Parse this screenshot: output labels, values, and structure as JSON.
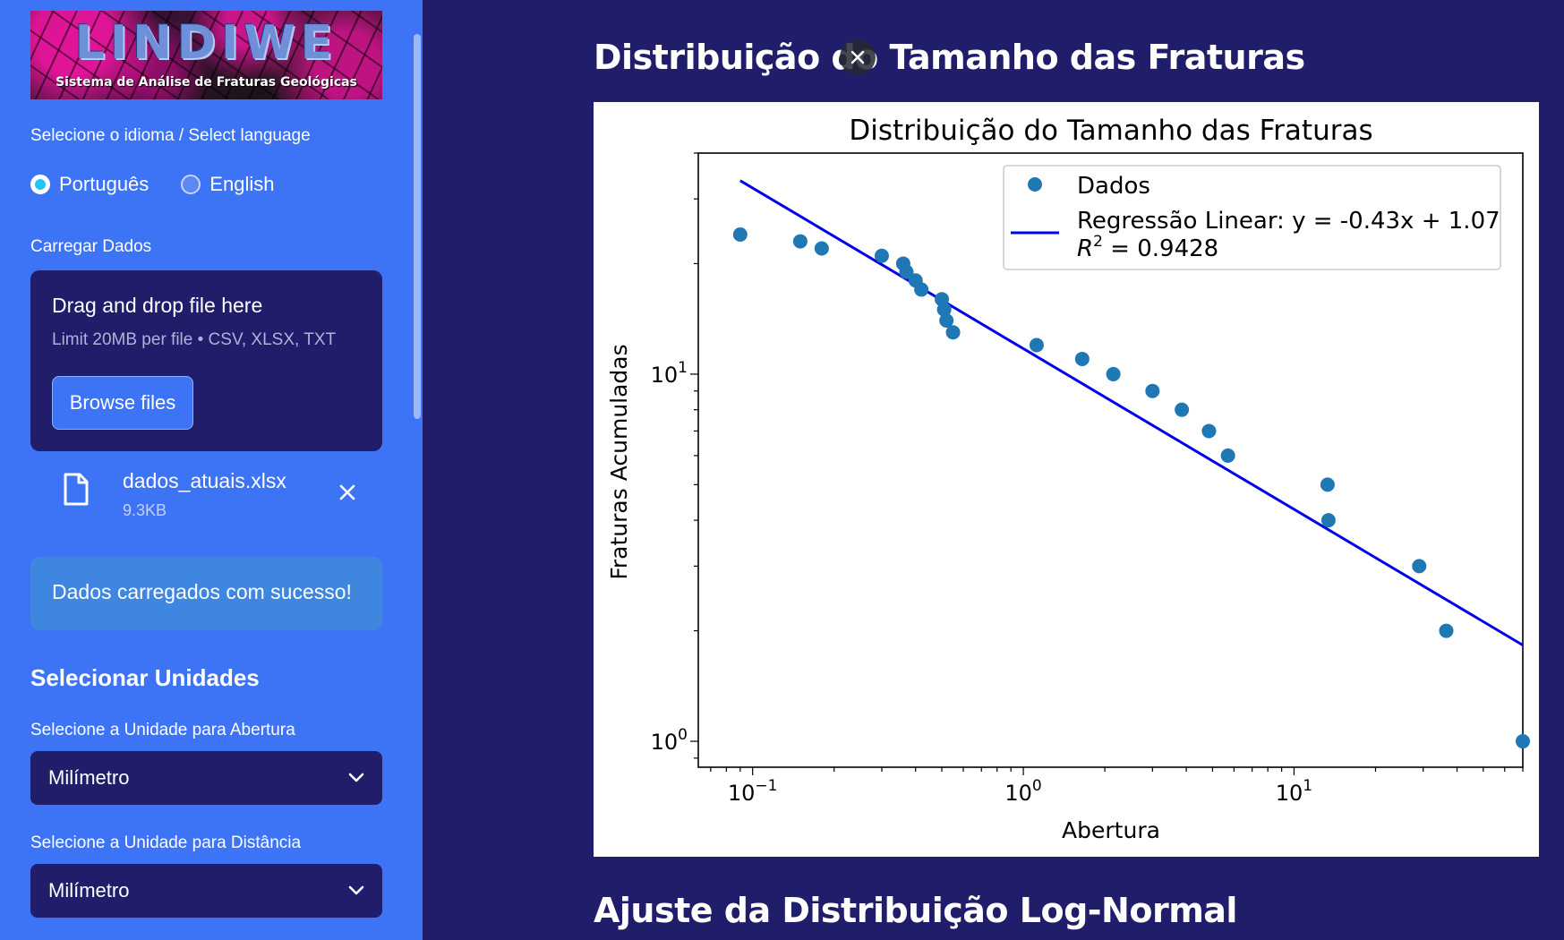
{
  "sidebar": {
    "logo": {
      "title": "LINDIWE",
      "subtitle": "Sistema de Análise de Fraturas Geológicas"
    },
    "language": {
      "label": "Selecione o idioma / Select language",
      "options": [
        "Português",
        "English"
      ],
      "selected": "Português"
    },
    "upload": {
      "label": "Carregar Dados",
      "drag_text": "Drag and drop file here",
      "limit_text": "Limit 20MB per file • CSV, XLSX, TXT",
      "browse_label": "Browse files",
      "file": {
        "name": "dados_atuais.xlsx",
        "size": "9.3KB"
      }
    },
    "success_message": "Dados carregados com sucesso!",
    "units": {
      "heading": "Selecionar Unidades",
      "aperture_label": "Selecione a Unidade para Abertura",
      "aperture_value": "Milímetro",
      "distance_label": "Selecione a Unidade para Distância",
      "distance_value": "Milímetro"
    }
  },
  "main": {
    "title": "Distribuição do Tamanho das Fraturas",
    "next_section": "Ajuste da Distribuição Log-Normal"
  },
  "colors": {
    "sidebar_bg": "#3d73f5",
    "main_bg": "#201d6b",
    "points": "#1f77b4",
    "regression_line": "#0000ee"
  },
  "chart_data": {
    "type": "scatter",
    "title": "Distribuição do Tamanho das Fraturas",
    "xlabel": "Abertura",
    "ylabel": "Fraturas Acumuladas",
    "xscale": "log",
    "yscale": "log",
    "xlim": [
      0.063,
      70
    ],
    "ylim": [
      0.85,
      40
    ],
    "x_ticks": [
      "10^-1",
      "10^0",
      "10^1"
    ],
    "y_ticks": [
      "10^0",
      "10^1"
    ],
    "legend_position": "top-right",
    "series": [
      {
        "name": "Dados",
        "x": [
          0.09,
          0.15,
          0.18,
          0.3,
          0.36,
          0.37,
          0.4,
          0.42,
          0.5,
          0.51,
          0.52,
          0.55,
          1.12,
          1.65,
          2.15,
          3.0,
          3.85,
          4.85,
          5.7,
          13.3,
          13.4,
          29.0,
          36.5,
          70.0
        ],
        "y": [
          24,
          23,
          22,
          21,
          20,
          19,
          18,
          17,
          16,
          15,
          14,
          13,
          12,
          11,
          10,
          9,
          8,
          7,
          6,
          5,
          4,
          3,
          2,
          1
        ]
      },
      {
        "name": "Regressão Linear: y = -0.43x + 1.07",
        "name_line2": "R",
        "r2_label": " = 0.9428",
        "type": "line",
        "slope": -0.43,
        "intercept": 1.07,
        "x_range": [
          0.09,
          70.0
        ]
      }
    ]
  }
}
